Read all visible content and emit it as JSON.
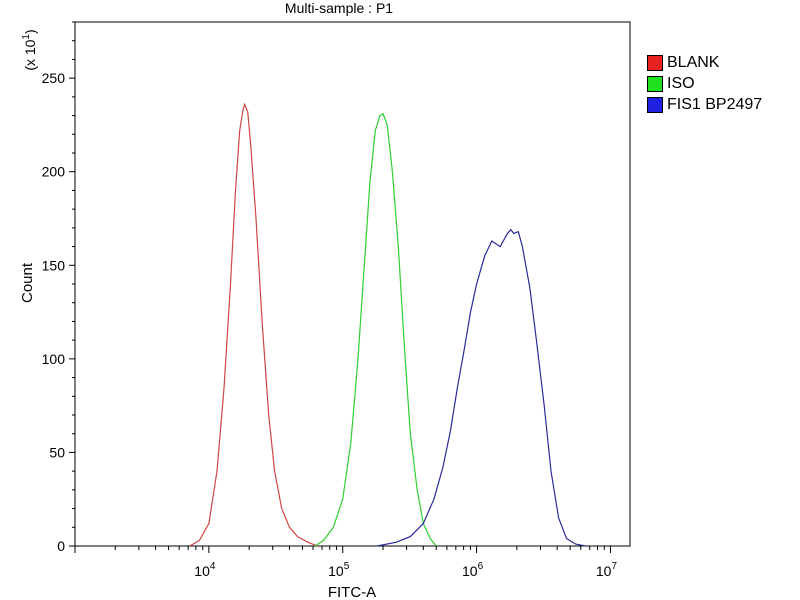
{
  "chart_data": {
    "type": "line",
    "title": "Multi-sample : P1",
    "xlabel": "FITC-A",
    "ylabel": "Count",
    "y_multiplier_label": "(x 10",
    "y_multiplier_exp": "1",
    "x_scale": "log",
    "xlim": [
      1000,
      14000000
    ],
    "ylim": [
      0,
      280
    ],
    "x_ticks": [
      {
        "base": "10",
        "exp": "4",
        "value": 10000
      },
      {
        "base": "10",
        "exp": "5",
        "value": 100000
      },
      {
        "base": "10",
        "exp": "6",
        "value": 1000000
      },
      {
        "base": "10",
        "exp": "7",
        "value": 10000000
      }
    ],
    "y_ticks": [
      0,
      50,
      100,
      150,
      200,
      250
    ],
    "grid": false,
    "legend_position": "right",
    "series": [
      {
        "name": "BLANK",
        "color": "#d04545",
        "swatch": "#e82020",
        "points": [
          [
            7200,
            0
          ],
          [
            8500,
            3
          ],
          [
            10000,
            12
          ],
          [
            11500,
            40
          ],
          [
            13000,
            85
          ],
          [
            14500,
            140
          ],
          [
            15800,
            190
          ],
          [
            17000,
            222
          ],
          [
            18000,
            233
          ],
          [
            18500,
            236
          ],
          [
            19500,
            232
          ],
          [
            20500,
            215
          ],
          [
            22500,
            175
          ],
          [
            25000,
            120
          ],
          [
            28000,
            70
          ],
          [
            31000,
            40
          ],
          [
            35000,
            20
          ],
          [
            40000,
            10
          ],
          [
            46000,
            5
          ],
          [
            55000,
            2
          ],
          [
            65000,
            0
          ]
        ]
      },
      {
        "name": "ISO",
        "color": "#30d030",
        "swatch": "#20e020",
        "points": [
          [
            62000,
            0
          ],
          [
            72000,
            3
          ],
          [
            85000,
            10
          ],
          [
            100000,
            25
          ],
          [
            115000,
            55
          ],
          [
            130000,
            100
          ],
          [
            145000,
            150
          ],
          [
            160000,
            195
          ],
          [
            175000,
            222
          ],
          [
            190000,
            230
          ],
          [
            200000,
            231
          ],
          [
            215000,
            225
          ],
          [
            235000,
            200
          ],
          [
            260000,
            160
          ],
          [
            290000,
            105
          ],
          [
            320000,
            60
          ],
          [
            360000,
            30
          ],
          [
            400000,
            12
          ],
          [
            450000,
            4
          ],
          [
            500000,
            0
          ]
        ]
      },
      {
        "name": "FIS1 BP2497",
        "color": "#2a2a9a",
        "swatch": "#2020e0",
        "points": [
          [
            180000,
            0
          ],
          [
            250000,
            2
          ],
          [
            320000,
            5
          ],
          [
            400000,
            12
          ],
          [
            480000,
            25
          ],
          [
            560000,
            42
          ],
          [
            640000,
            62
          ],
          [
            720000,
            85
          ],
          [
            800000,
            103
          ],
          [
            900000,
            125
          ],
          [
            1000000,
            140
          ],
          [
            1150000,
            155
          ],
          [
            1300000,
            163
          ],
          [
            1500000,
            160
          ],
          [
            1700000,
            167
          ],
          [
            1800000,
            169
          ],
          [
            1900000,
            167
          ],
          [
            2050000,
            168
          ],
          [
            2200000,
            160
          ],
          [
            2500000,
            138
          ],
          [
            2800000,
            110
          ],
          [
            3200000,
            75
          ],
          [
            3600000,
            40
          ],
          [
            4100000,
            15
          ],
          [
            4700000,
            4
          ],
          [
            5500000,
            1
          ],
          [
            6500000,
            0
          ]
        ]
      }
    ]
  }
}
